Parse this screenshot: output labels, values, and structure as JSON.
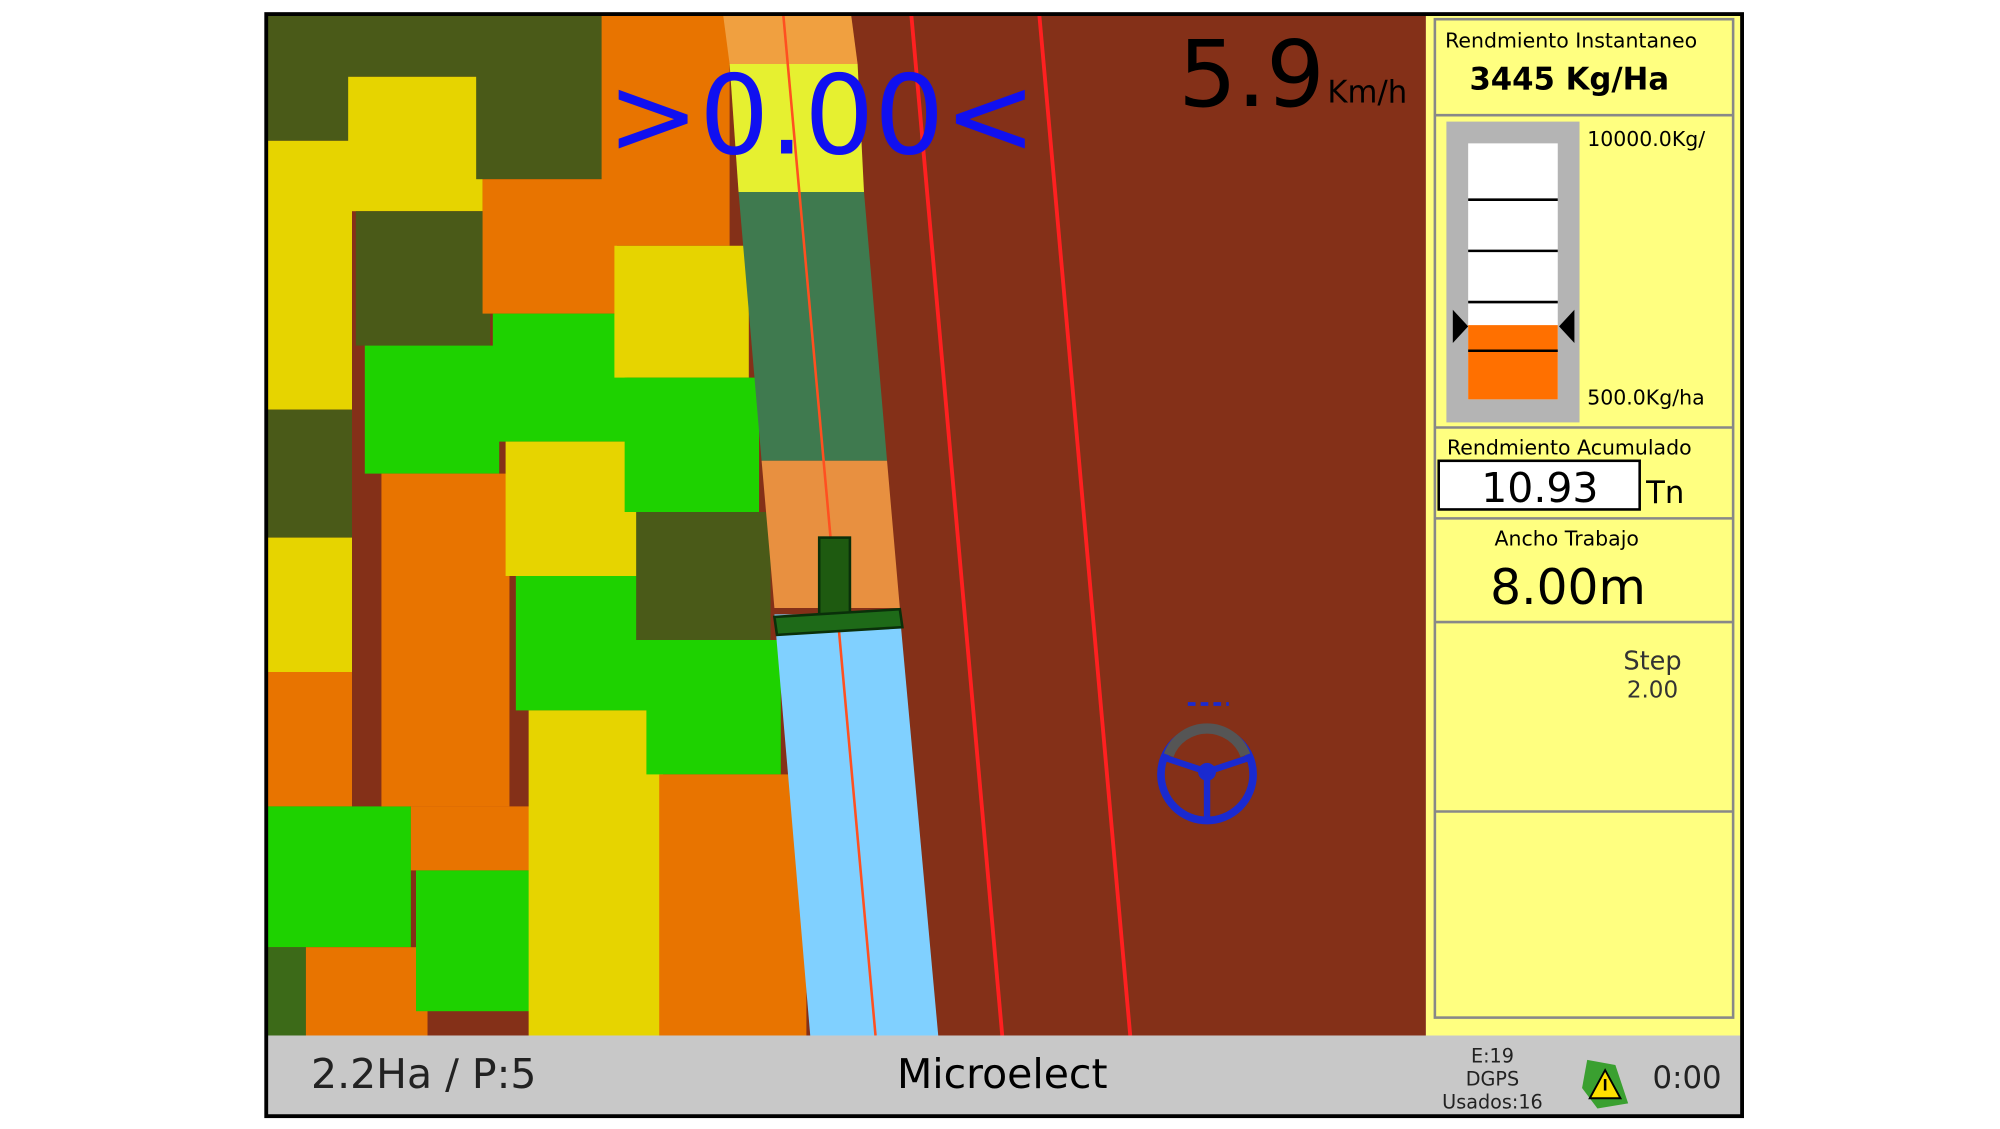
{
  "map": {
    "speed_target": ">0.00<",
    "speed": "5.9",
    "speed_unit": "Km/h"
  },
  "panel": {
    "instant_label": "Rendmiento Instantaneo",
    "instant_value": "3445 Kg/Ha",
    "gauge_max": "10000.0Kg/",
    "gauge_min": "500.0Kg/ha",
    "accum_label": "Rendmiento Acumulado",
    "accum_value": "10.93",
    "accum_unit": "Tn",
    "width_label": "Ancho Trabajo",
    "width_value": "8.00m",
    "step_label": "Step",
    "step_value": "2.00"
  },
  "status_bar": {
    "area": "2.2Ha / P:5",
    "brand": "Microelect",
    "gps_e": "E:19",
    "gps_mode": "DGPS",
    "gps_used": "Usados:16",
    "time": "0:00"
  }
}
